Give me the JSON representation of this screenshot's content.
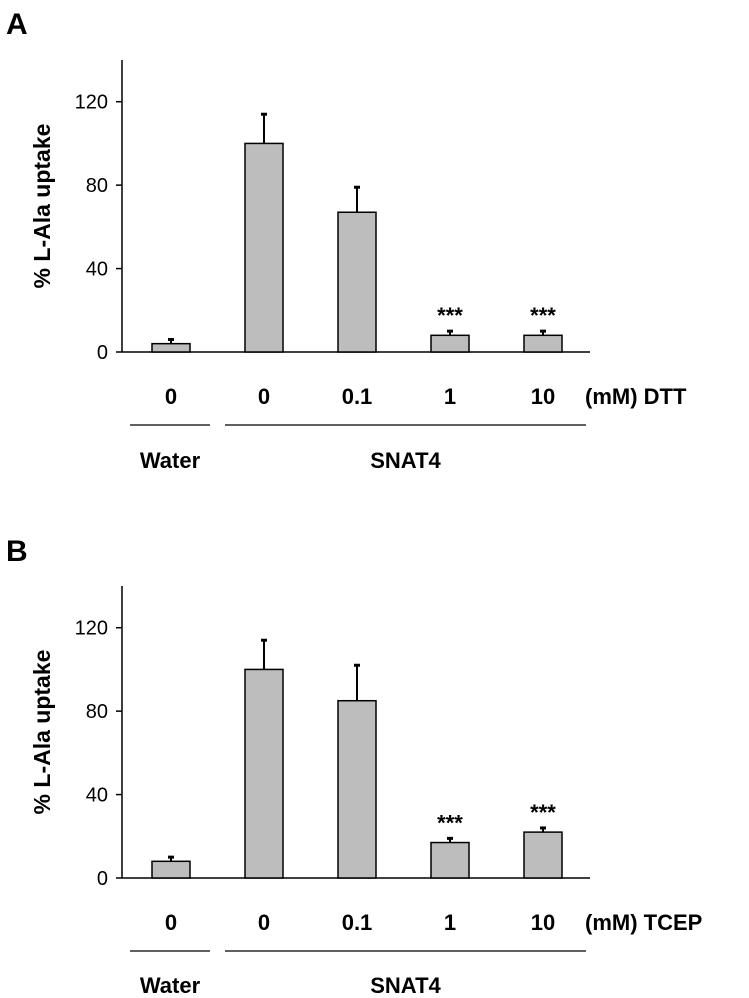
{
  "chart_data": [
    {
      "type": "bar",
      "panel": "A",
      "ylabel": "% L-Ala uptake",
      "ylim": [
        0,
        140
      ],
      "yticks": [
        0,
        40,
        80,
        120
      ],
      "categories": [
        "0",
        "0",
        "0.1",
        "1",
        "10"
      ],
      "values": [
        4,
        100,
        67,
        8,
        8
      ],
      "errors": [
        2,
        14,
        12,
        2,
        2
      ],
      "significance": [
        "",
        "",
        "",
        "***",
        "***"
      ],
      "unit_label": "(mM) DTT",
      "groups": [
        {
          "label": "Water",
          "span": [
            0,
            0
          ]
        },
        {
          "label": "SNAT4",
          "span": [
            1,
            4
          ]
        }
      ],
      "bar_color": "#bdbdbd"
    },
    {
      "type": "bar",
      "panel": "B",
      "ylabel": "% L-Ala uptake",
      "ylim": [
        0,
        140
      ],
      "yticks": [
        0,
        40,
        80,
        120
      ],
      "categories": [
        "0",
        "0",
        "0.1",
        "1",
        "10"
      ],
      "values": [
        8,
        100,
        85,
        17,
        22
      ],
      "errors": [
        2,
        14,
        17,
        2,
        2
      ],
      "significance": [
        "",
        "",
        "",
        "***",
        "***"
      ],
      "unit_label": "(mM) TCEP",
      "groups": [
        {
          "label": "Water",
          "span": [
            0,
            0
          ]
        },
        {
          "label": "SNAT4",
          "span": [
            1,
            4
          ]
        }
      ],
      "bar_color": "#bdbdbd"
    }
  ]
}
